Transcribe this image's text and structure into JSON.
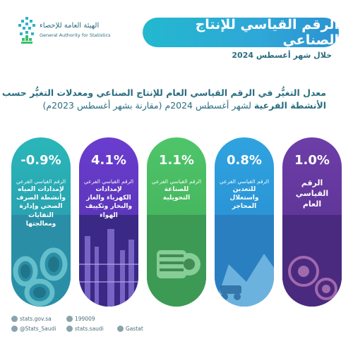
{
  "header": {
    "org_ar": "الهيئة العامة للإحصاء",
    "org_en": "General Authority for Statistics",
    "title": "الرقم القياسي للإنتاج الصناعي",
    "period": "خلال شهر أغسطس 2024"
  },
  "headline": {
    "line1": "معدل التغيُّر في الرقم القياسي العام للإنتاج الصناعي ومعدلات التغيُّر حسب",
    "line2_bold": "الأنشطة الفرعية",
    "line2_rest": "لشهر أغسطس 2024م (مقارنة بشهر أغسطس 2023م)"
  },
  "cards": [
    {
      "value": "-0.9%",
      "sub": "الرقم القياسي الفرعي",
      "main": "لإمدادات المياه وأنشطة الصرف الصحي وإدارة النفايات ومعالجتها",
      "color": "#2ab7b9"
    },
    {
      "value": "4.1%",
      "sub": "الرقم القياسي الفرعي",
      "main": "لإمدادات الكهرباء والغاز والبخار وتكييف الهواء",
      "color": "#6a3dcf"
    },
    {
      "value": "1.1%",
      "sub": "الرقم القياسي الفرعي",
      "main": "للصناعة التحويلية",
      "color": "#4fc56a"
    },
    {
      "value": "0.8%",
      "sub": "الرقم القياسي الفرعي",
      "main": "للتعدين واستغلال المحاجر",
      "color": "#2fa3df"
    },
    {
      "value": "1.0%",
      "sub": "",
      "main": "الرقم القياسي العام",
      "color": "#6d3ea8"
    }
  ],
  "footer": {
    "website": "stats.gov.sa",
    "twitter": "@Stats_Saudi",
    "phone": "199009",
    "facebook": "stats.saudi",
    "app": "Gastat"
  }
}
